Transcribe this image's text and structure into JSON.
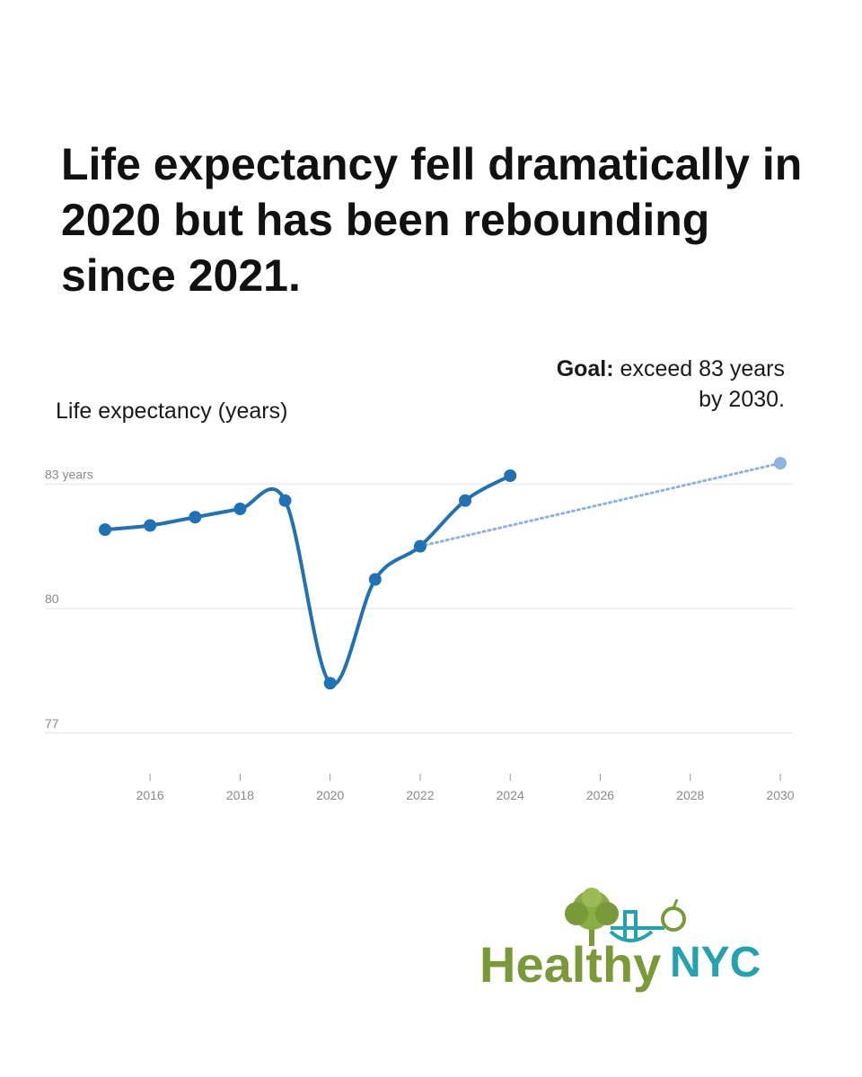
{
  "headline": "Life expectancy fell dramatically in 2020 but has been rebounding since 2021.",
  "chart_data": {
    "type": "line",
    "ylabel": "Life expectancy (years)",
    "ylim": [
      76,
      84
    ],
    "xlim": [
      2014.92,
      2030
    ],
    "y_ticks": [
      {
        "value": 83,
        "label": "83 years"
      },
      {
        "value": 80,
        "label": "80"
      },
      {
        "value": 77,
        "label": "77"
      }
    ],
    "x_ticks": [
      2016,
      2018,
      2020,
      2022,
      2024,
      2026,
      2028,
      2030
    ],
    "series": [
      {
        "name": "Life expectancy",
        "color": "#2171b5",
        "x": [
          2015,
          2016,
          2017,
          2018,
          2019,
          2020,
          2021,
          2022,
          2023,
          2024
        ],
        "values": [
          81.9,
          82.0,
          82.2,
          82.4,
          82.6,
          78.2,
          80.7,
          81.5,
          82.6,
          83.2
        ]
      }
    ],
    "goal": {
      "from": {
        "x": 2022,
        "y": 81.5
      },
      "to": {
        "x": 2030,
        "y": 83.5
      },
      "color": "#8fb4dc",
      "label_bold": "Goal:",
      "label_text": "exceed 83 years by 2030."
    }
  },
  "logo": {
    "text_healthy": "Healthy",
    "text_nyc": "NYC",
    "color_healthy": "#7a9a3a",
    "color_nyc": "#24a3ae"
  }
}
